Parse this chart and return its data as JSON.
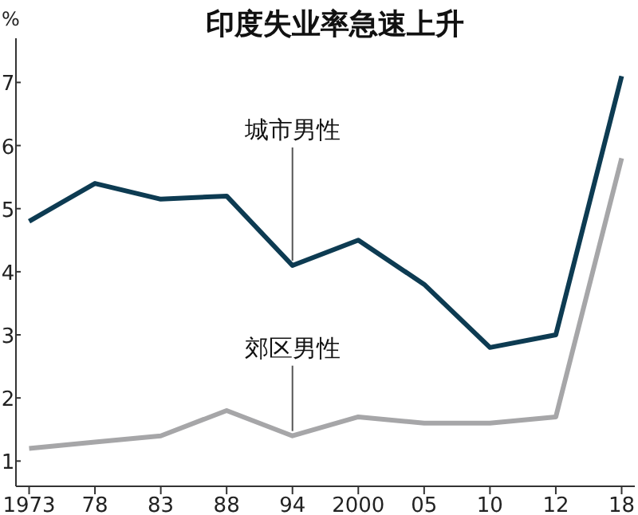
{
  "chart_data": {
    "type": "line",
    "title": "印度失业率急速上升",
    "ylabel": "%",
    "categories": [
      "1973",
      "78",
      "83",
      "88",
      "94",
      "2000",
      "05",
      "10",
      "12",
      "18"
    ],
    "series": [
      {
        "name": "城市男性",
        "color": "#0d3b52",
        "values": [
          4.8,
          5.4,
          5.15,
          5.2,
          4.1,
          4.5,
          3.8,
          2.8,
          3.0,
          7.1
        ]
      },
      {
        "name": "郊区男性",
        "color": "#a6a6a8",
        "values": [
          1.2,
          1.3,
          1.4,
          1.8,
          1.4,
          1.7,
          1.6,
          1.6,
          1.7,
          5.8
        ]
      }
    ],
    "ylim": [
      0.6,
      7.7
    ],
    "yticks": [
      1,
      2,
      3,
      4,
      5,
      6,
      7
    ],
    "grid": false,
    "legend": false,
    "marker": "none",
    "line_style": "solid"
  }
}
